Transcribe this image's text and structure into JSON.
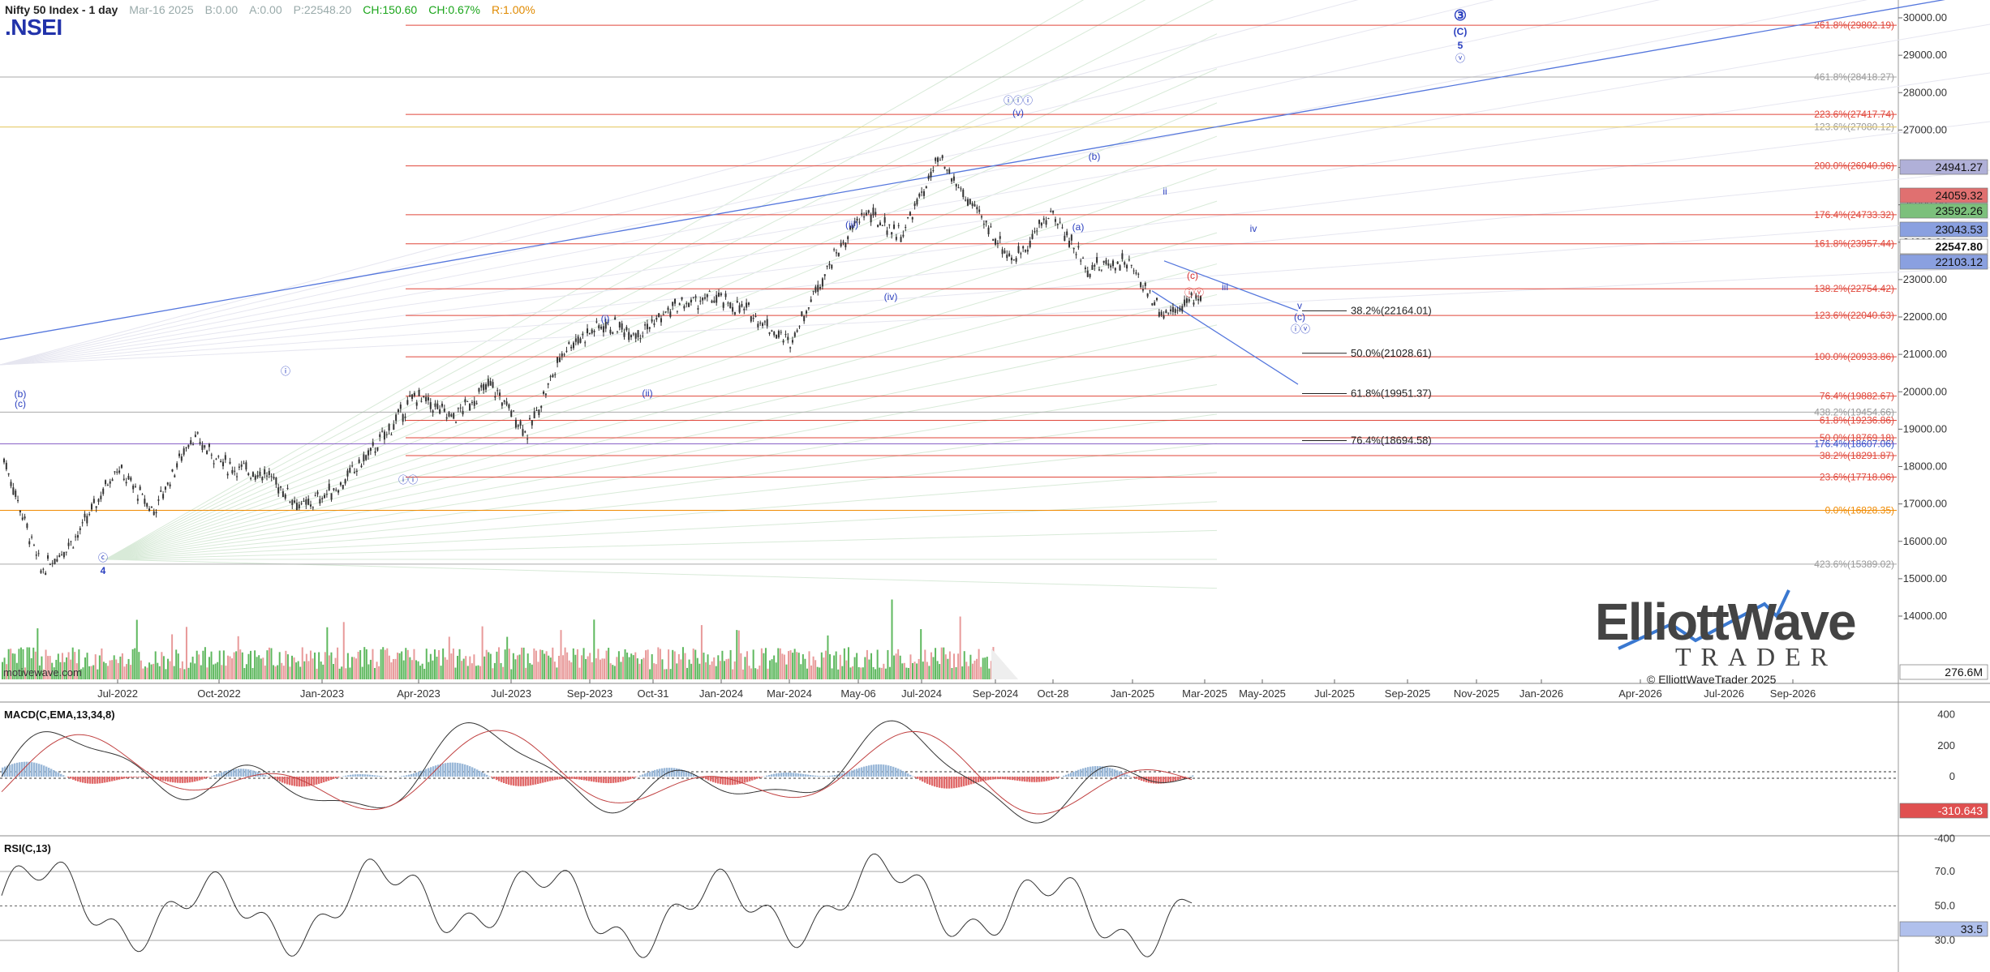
{
  "header": {
    "title": "Nifty 50 Index - 1 day",
    "symbol": ".NSEI",
    "stats": {
      "date": "Mar-16 2025",
      "bid": "B:0.00",
      "ask": "A:0.00",
      "price": "P:22548.20",
      "change": "CH:150.60",
      "change_pct": "CH:0.67%",
      "range": "R:1.00%"
    },
    "source": "motivewave.com"
  },
  "logo": {
    "line1": "ElliottWave",
    "line2": "TRADER",
    "copyright": "© ElliottWaveTrader 2025"
  },
  "colors": {
    "candle": "#333333",
    "fib_line": "#e0463a",
    "wave_label": "#2a3fbf",
    "wave_label_alt": "#d93030",
    "trendline": "#5577dd",
    "vol_up": "#5fb85f",
    "vol_down": "#e89a9a",
    "macd_line": "#333333",
    "macd_signal": "#c04040",
    "macd_hist_pos": "#9ab8d8",
    "macd_hist_neg": "#e06a6a",
    "rsi_line": "#333333",
    "rsi_fill": "#c8c8e8"
  },
  "chart_data": [
    {
      "type": "candlestick",
      "title": "Nifty 50 Index - 1 day",
      "ylim": [
        13000,
        31000
      ],
      "y_ticks": [
        14000,
        15000,
        16000,
        17000,
        18000,
        19000,
        20000,
        21000,
        22000,
        23000,
        24000,
        25000,
        26000,
        27000,
        28000,
        29000,
        30000
      ],
      "x_ticks": [
        "Jul-2022",
        "Oct-2022",
        "Jan-2023",
        "Apr-2023",
        "Jul-2023",
        "Sep-2023",
        "Oct-31",
        "Jan-2024",
        "Mar-2024",
        "May-06",
        "Jul-2024",
        "Sep-2024",
        "Oct-28",
        "Jan-2025",
        "Mar-2025",
        "May-2025",
        "Jul-2025",
        "Sep-2025",
        "Nov-2025",
        "Jan-2026",
        "Apr-2026",
        "Jul-2026",
        "Sep-2026"
      ],
      "price_path": [
        {
          "x": "Jun-2022",
          "y": 18200
        },
        {
          "x": "Jun-2022",
          "y": 15200
        },
        {
          "x": "Jul-2022",
          "y": 16200
        },
        {
          "x": "Sep-2022",
          "y": 18000
        },
        {
          "x": "Oct-2022",
          "y": 16800
        },
        {
          "x": "Dec-2022",
          "y": 18800
        },
        {
          "x": "Jan-2023",
          "y": 18000
        },
        {
          "x": "Feb-2023",
          "y": 17800
        },
        {
          "x": "Mar-2023",
          "y": 16900
        },
        {
          "x": "Apr-2023",
          "y": 17500
        },
        {
          "x": "Jun-2023",
          "y": 18600
        },
        {
          "x": "Jul-2023",
          "y": 19900
        },
        {
          "x": "Aug-2023",
          "y": 19300
        },
        {
          "x": "Sep-2023",
          "y": 20200
        },
        {
          "x": "Oct-31",
          "y": 18900
        },
        {
          "x": "Dec-2023",
          "y": 21200
        },
        {
          "x": "Jan-2024",
          "y": 21800
        },
        {
          "x": "Feb-2024",
          "y": 21600
        },
        {
          "x": "Mar-2024",
          "y": 22300
        },
        {
          "x": "Apr-2024",
          "y": 22500
        },
        {
          "x": "May-06",
          "y": 22100
        },
        {
          "x": "Jun-2024",
          "y": 21300
        },
        {
          "x": "Jun-2024",
          "y": 23300
        },
        {
          "x": "Jul-2024",
          "y": 24800
        },
        {
          "x": "Aug-2024",
          "y": 24200
        },
        {
          "x": "Sep-2024",
          "y": 26200
        },
        {
          "x": "Oct-2024",
          "y": 24800
        },
        {
          "x": "Nov-2024",
          "y": 23500
        },
        {
          "x": "Dec-2024",
          "y": 24800
        },
        {
          "x": "Jan-2025",
          "y": 23300
        },
        {
          "x": "Feb-2025",
          "y": 23500
        },
        {
          "x": "Mar-2025",
          "y": 22100
        },
        {
          "x": "Mar-2025",
          "y": 22548
        }
      ],
      "right_axis_badges": [
        "24941.27",
        "24059.32",
        "23592.26",
        "23043.53",
        "22547.80",
        "22103.12",
        "276.6M"
      ],
      "fib_levels_right": [
        {
          "label": "261.8%(29802.19)",
          "y": 29802.19
        },
        {
          "label": "461.8%(28418.27)",
          "y": 28418.27
        },
        {
          "label": "223.6%(27417.74)",
          "y": 27417.74
        },
        {
          "label": "123.6%(27080.12)",
          "y": 27080.12
        },
        {
          "label": "200.0%(26040.96)",
          "y": 26040.96
        },
        {
          "label": "176.4%(24733.32)",
          "y": 24733.32
        },
        {
          "label": "161.8%(23957.44)",
          "y": 23957.44
        },
        {
          "label": "138.2%(22754.42)",
          "y": 22754.42
        },
        {
          "label": "123.6%(22040.63)",
          "y": 22040.63
        },
        {
          "label": "100.0%(20933.86)",
          "y": 20933.86
        },
        {
          "label": "76.4%(19882.67)",
          "y": 19882.67
        },
        {
          "label": "438.2%(19454.66)",
          "y": 19454.66
        },
        {
          "label": "61.8%(19236.86)",
          "y": 19236.86
        },
        {
          "label": "50.0%(18769.18)",
          "y": 18769.18
        },
        {
          "label": "176.4%(18607.06)",
          "y": 18607.06
        },
        {
          "label": "38.2%(18291.87)",
          "y": 18291.87
        },
        {
          "label": "23.6%(17718.06)",
          "y": 17718.06
        },
        {
          "label": "0.0%(16828.35)",
          "y": 16828.35
        },
        {
          "label": "423.6%(15389.02)",
          "y": 15389.02
        }
      ],
      "fib_levels_mid": [
        {
          "label": "38.2%(22164.01)",
          "y": 22164.01
        },
        {
          "label": "50.0%(21028.61)",
          "y": 21028.61
        },
        {
          "label": "61.8%(19951.37)",
          "y": 19951.37
        },
        {
          "label": "76.4%(18694.58)",
          "y": 18694.58
        }
      ],
      "wave_labels": [
        "(b)",
        "(c)",
        "ⓒ",
        "4",
        "ⓘ",
        "ⓘⓘ",
        "(i)",
        "(ii)",
        "(iii)",
        "(iv)",
        "ⓘⓘⓘ",
        "(v)",
        "(a)",
        "(b)",
        "ii",
        "(c)",
        "ⓘⓥ",
        "iii",
        "iv",
        "v",
        "(c)",
        "ⓘⓥ",
        "③",
        "(C)",
        "5",
        "ⓥ"
      ]
    },
    {
      "type": "bar",
      "title": "Volume",
      "series": [
        {
          "name": "",
          "values": []
        }
      ]
    },
    {
      "type": "line",
      "title": "MACD(C,EMA,13,34,8)",
      "ylim": [
        -450,
        600
      ],
      "y_ticks": [
        400,
        200,
        0,
        -200,
        -400
      ],
      "badge": "-310.643"
    },
    {
      "type": "line",
      "title": "RSI(C,13)",
      "ylim": [
        20,
        80
      ],
      "y_ticks": [
        70.0,
        50.0,
        30.0
      ],
      "badge": "33.5"
    }
  ]
}
